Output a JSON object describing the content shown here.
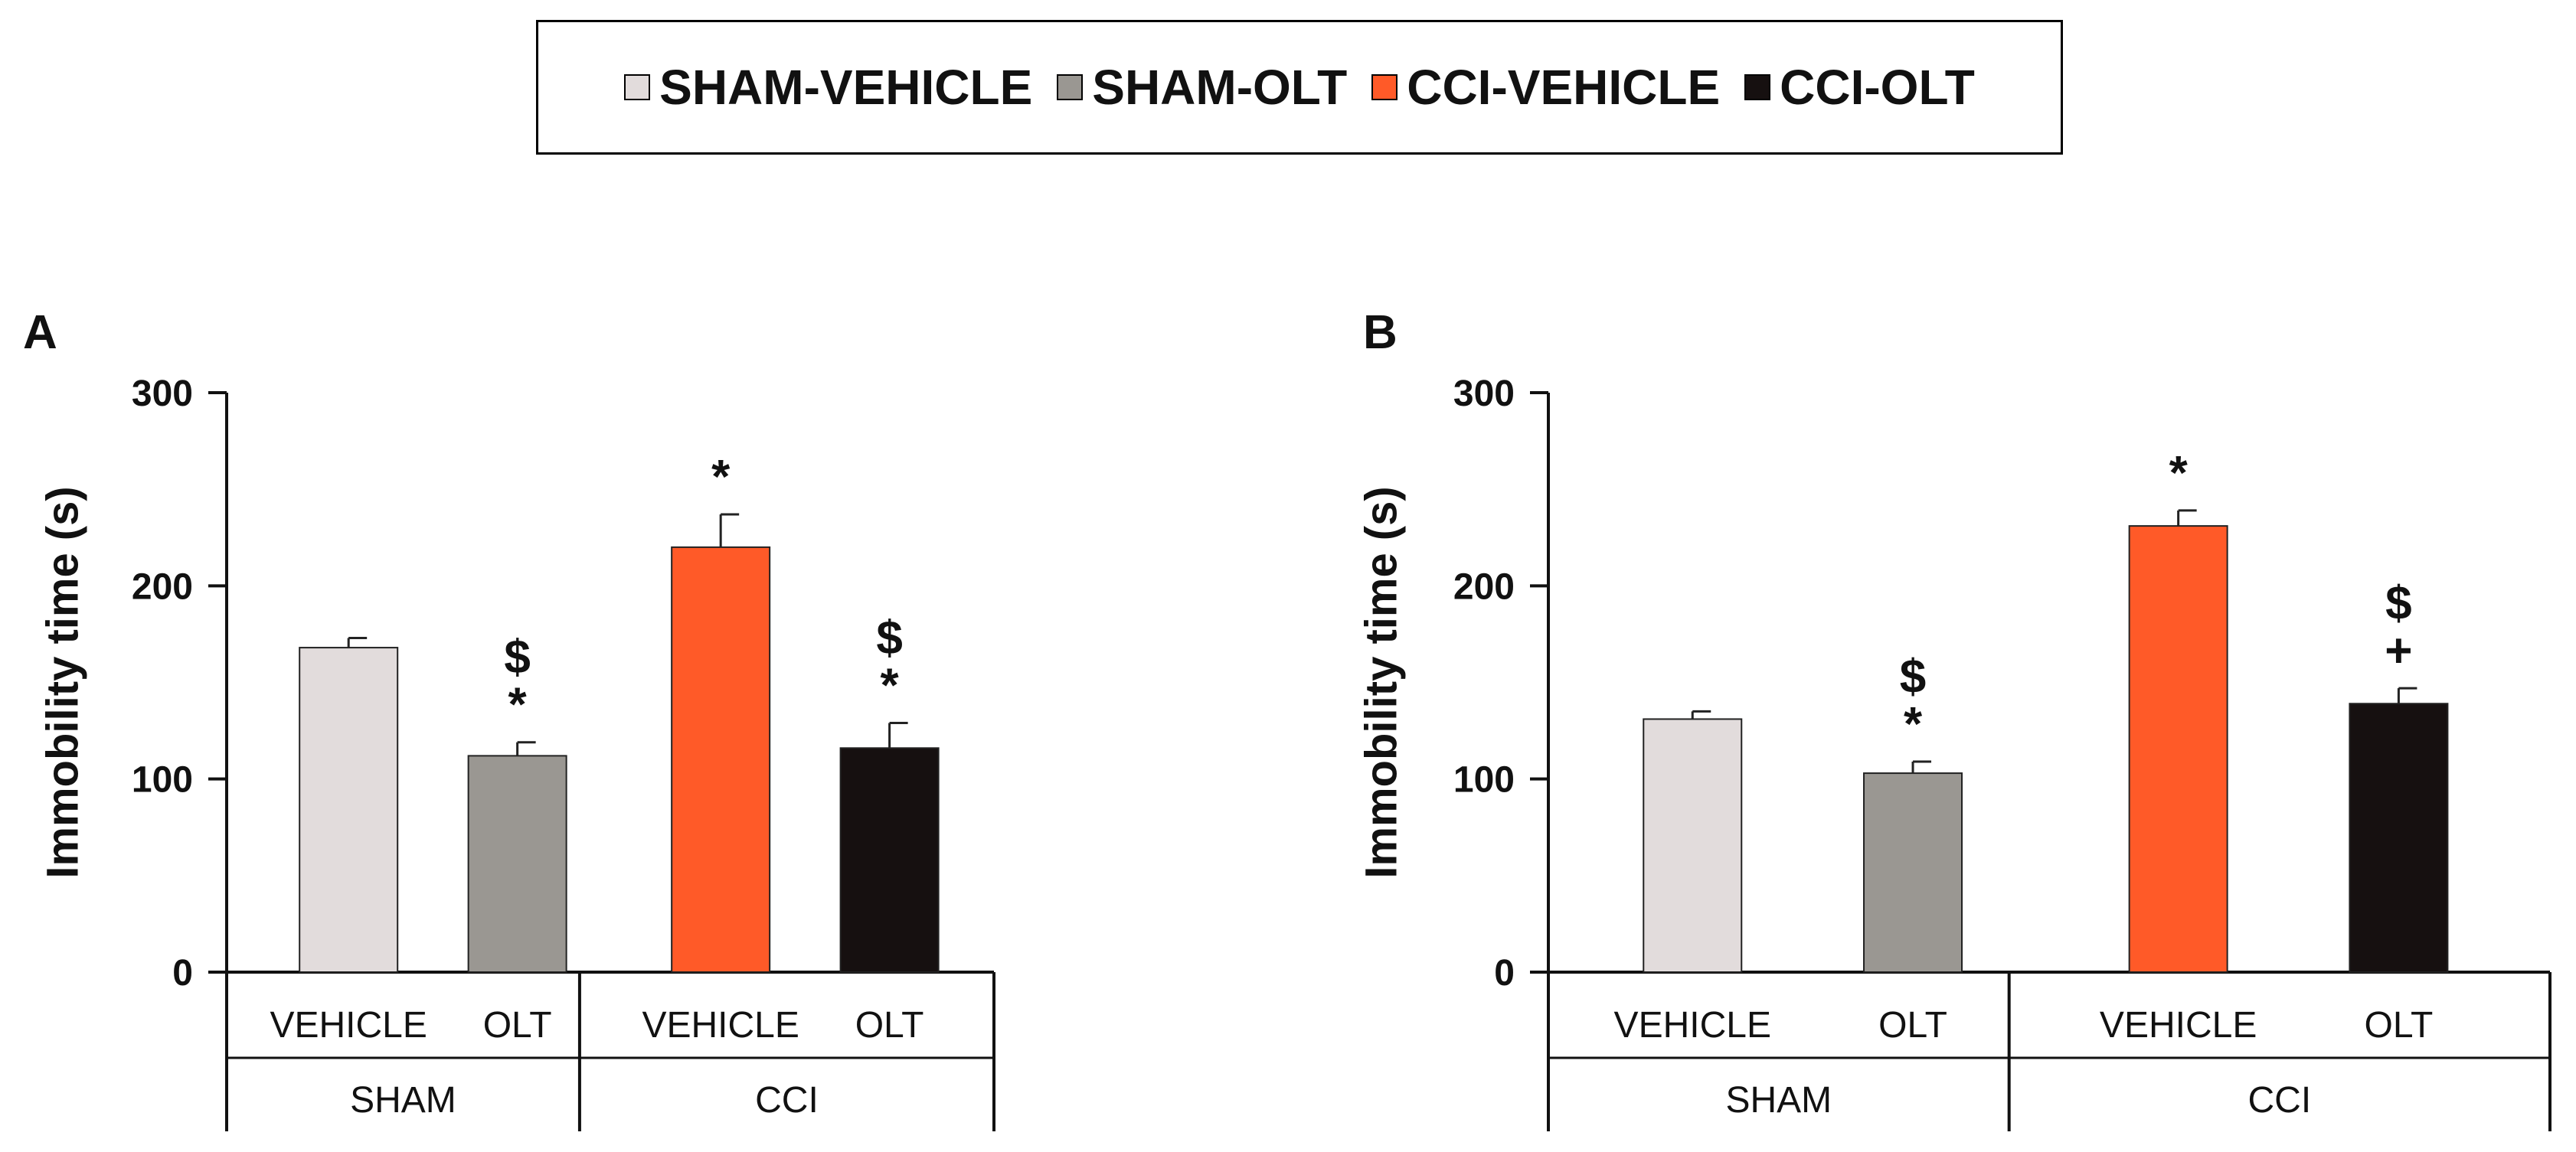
{
  "legend": {
    "items": [
      {
        "label": "SHAM-VEHICLE",
        "color": "#e2dcdc"
      },
      {
        "label": "SHAM-OLT",
        "color": "#9a9792"
      },
      {
        "label": "CCI-VEHICLE",
        "color": "#ff5a28"
      },
      {
        "label": "CCI-OLT",
        "color": "#161010"
      }
    ]
  },
  "chart_data": [
    {
      "type": "bar",
      "panel_label": "A",
      "ylabel": "Immobility  time (s)",
      "ylim": [
        0,
        300
      ],
      "yticks": [
        0,
        100,
        200,
        300
      ],
      "categories": [
        "VEHICLE",
        "OLT",
        "VEHICLE",
        "OLT"
      ],
      "groups": [
        "SHAM",
        "CCI"
      ],
      "values": [
        168,
        112,
        220,
        116
      ],
      "errors": [
        5,
        7,
        17,
        13
      ],
      "colors": [
        "#e2dcdc",
        "#9a9792",
        "#ff5a28",
        "#161010"
      ],
      "annotations": [
        [],
        [
          "*",
          "$"
        ],
        [
          "*"
        ],
        [
          "*",
          "$"
        ]
      ]
    },
    {
      "type": "bar",
      "panel_label": "B",
      "ylabel": "Immobility  time (s)",
      "ylim": [
        0,
        300
      ],
      "yticks": [
        0,
        100,
        200,
        300
      ],
      "categories": [
        "VEHICLE",
        "OLT",
        "VEHICLE",
        "OLT"
      ],
      "groups": [
        "SHAM",
        "CCI"
      ],
      "values": [
        131,
        103,
        231,
        139
      ],
      "errors": [
        4,
        6,
        8,
        8
      ],
      "colors": [
        "#e2dcdc",
        "#9a9792",
        "#ff5a28",
        "#161010"
      ],
      "annotations": [
        [],
        [
          "*",
          "$"
        ],
        [
          "*"
        ],
        [
          "+",
          "$"
        ]
      ]
    }
  ]
}
